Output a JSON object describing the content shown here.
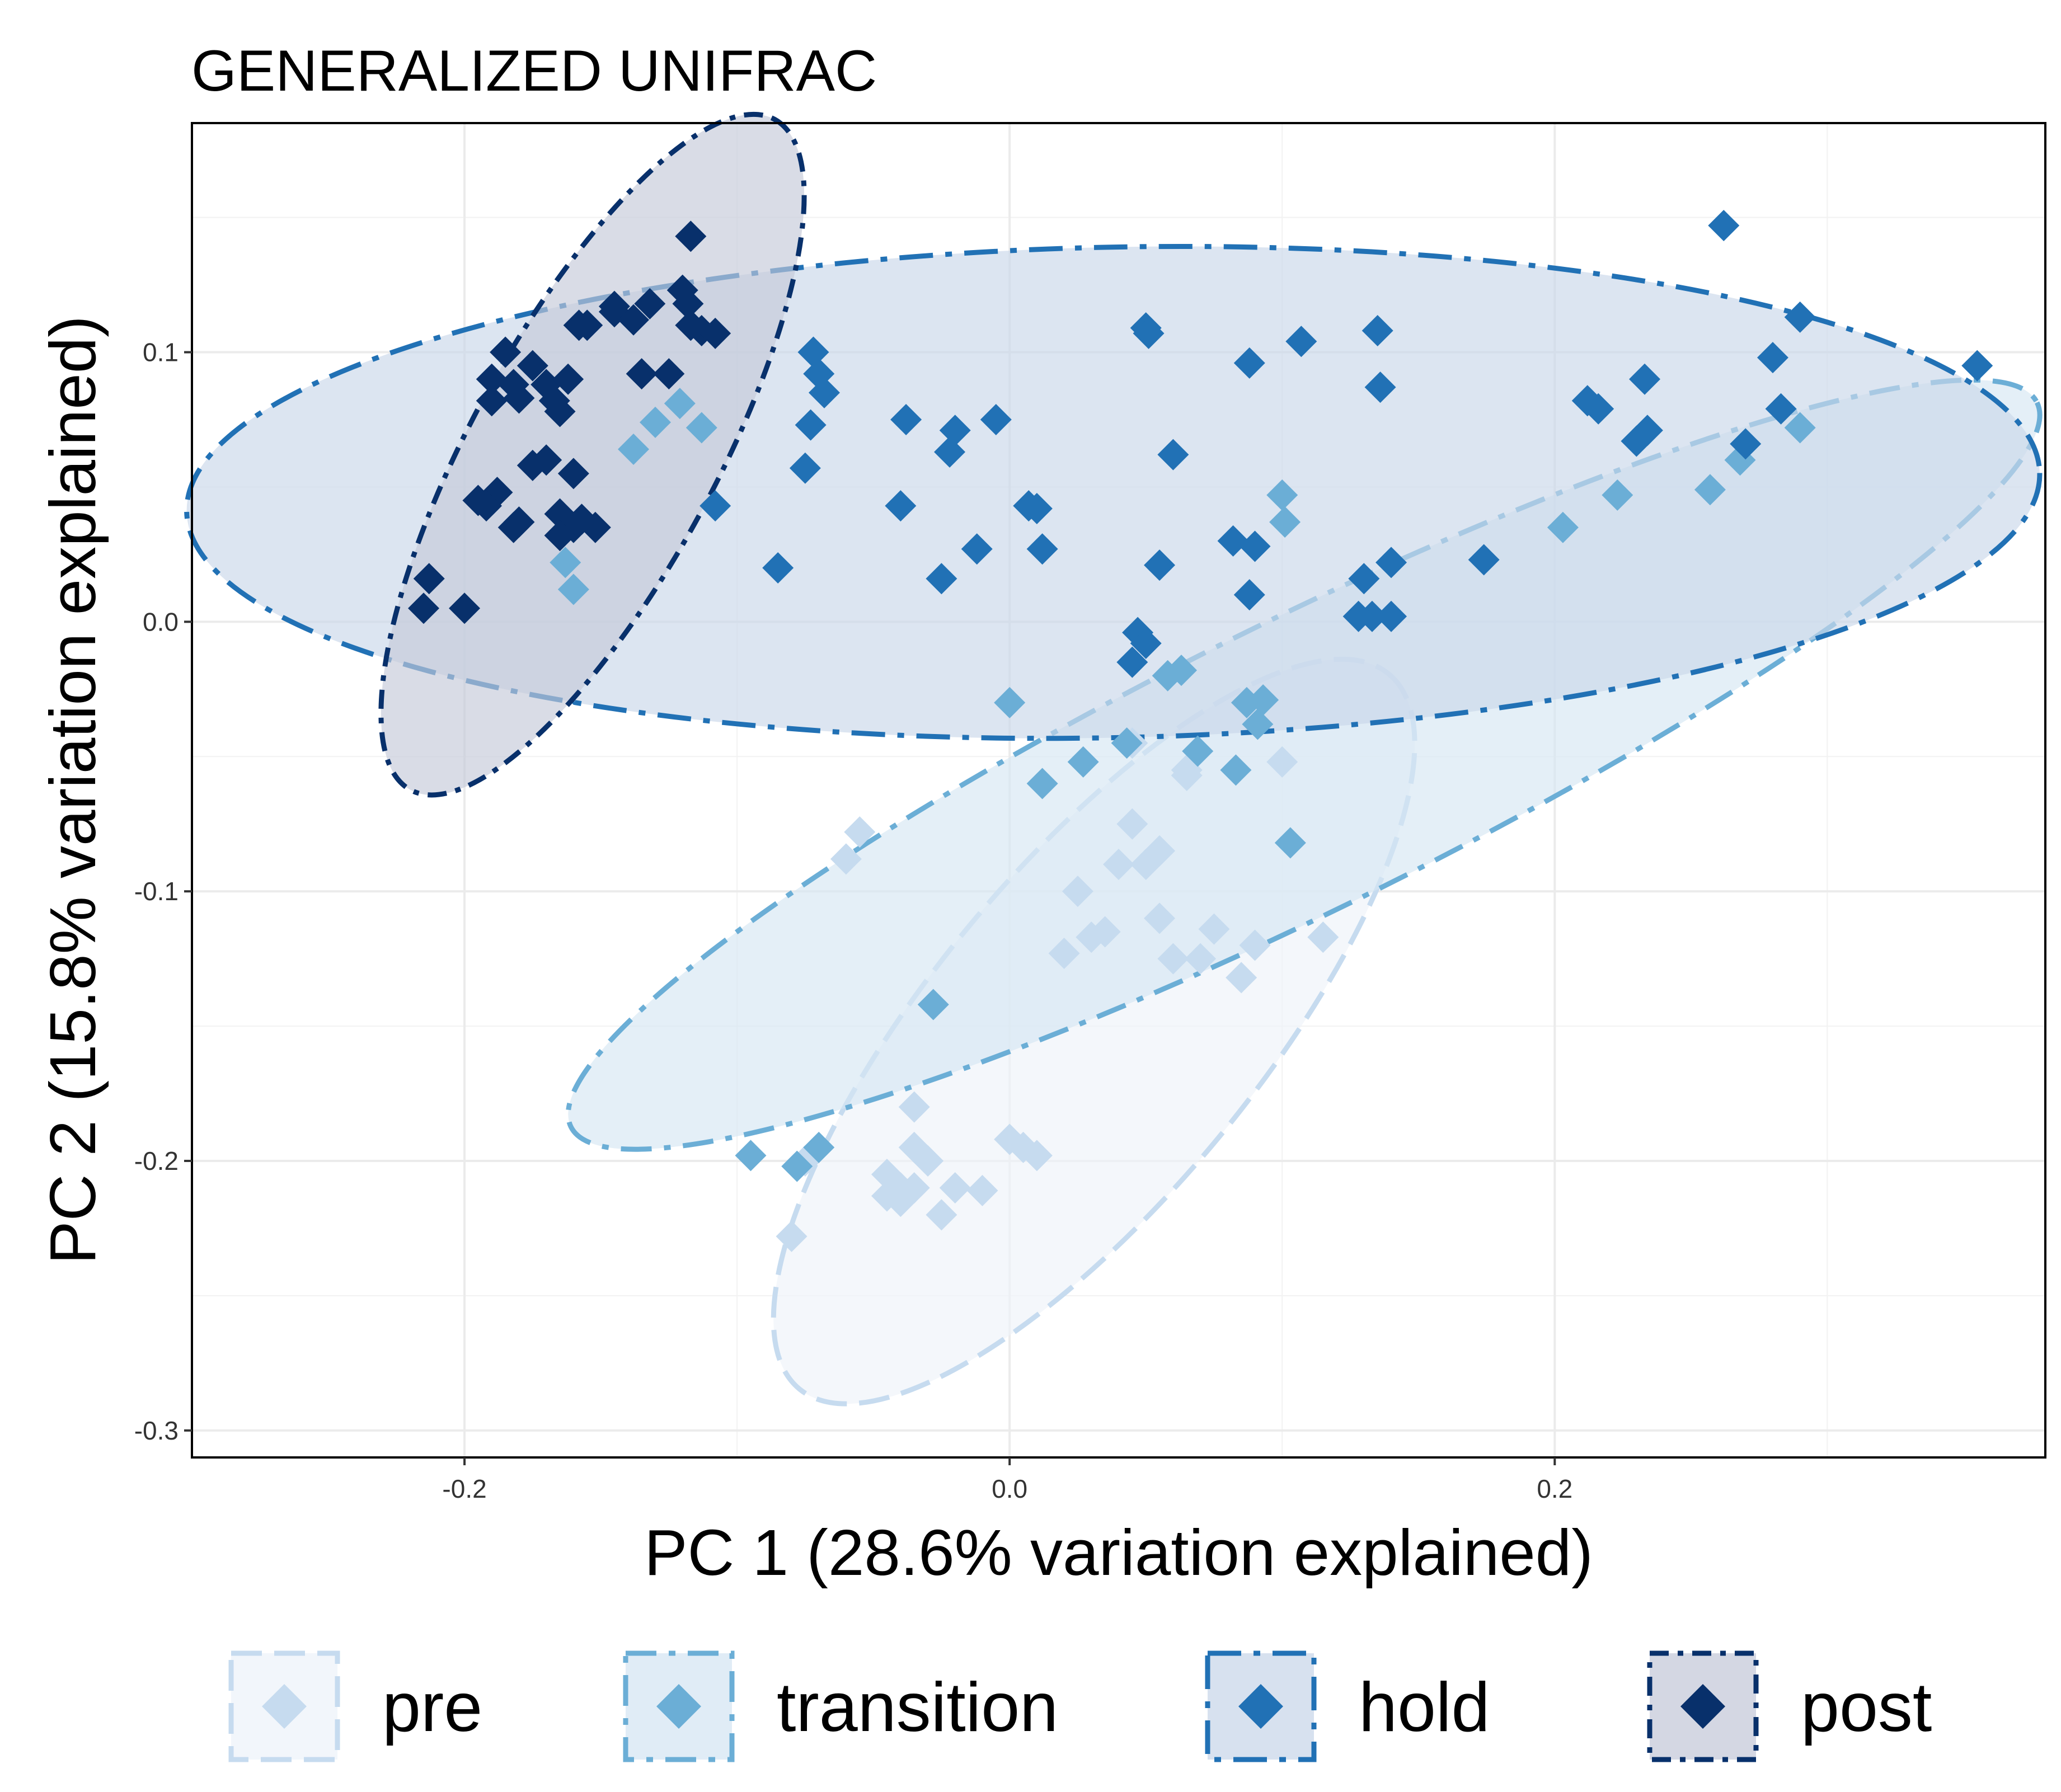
{
  "chart_data": {
    "type": "scatter",
    "title": "GENERALIZED UNIFRAC",
    "xlabel": "PC 1 (28.6% variation explained)",
    "ylabel": "PC 2 (15.8% variation explained)",
    "xlim": [
      -0.3,
      0.38
    ],
    "ylim": [
      -0.31,
      0.185
    ],
    "x_ticks": [
      -0.2,
      0.0,
      0.2
    ],
    "x_tick_labels": [
      "-0.2",
      "0.0",
      "0.2"
    ],
    "y_ticks": [
      -0.3,
      -0.2,
      -0.1,
      0.0,
      0.1
    ],
    "y_tick_labels": [
      "-0.3",
      "-0.2",
      "-0.1",
      "0.0",
      "0.1"
    ],
    "grid": true,
    "legend_position": "bottom",
    "series": [
      {
        "name": "pre",
        "color": "#c6dbef",
        "fill": "#eef3f9",
        "ellipse": {
          "cx": 0.031,
          "cy": -0.152,
          "rx": 0.17,
          "ry": 0.06,
          "angle": -50.5
        },
        "x": [
          -0.035,
          -0.03,
          -0.035,
          -0.04,
          -0.045,
          -0.04,
          -0.035,
          -0.03,
          -0.025,
          -0.045,
          -0.02,
          -0.01,
          -0.08,
          -0.075,
          0.0,
          0.01,
          0.005,
          0.02,
          0.025,
          0.03,
          0.035,
          0.04,
          0.045,
          0.05,
          0.055,
          0.06,
          0.065,
          0.07,
          0.075,
          0.085,
          0.09,
          0.045,
          0.055,
          0.065,
          0.115,
          0.1,
          -0.06,
          -0.055
        ],
        "y": [
          -0.18,
          -0.2,
          -0.21,
          -0.215,
          -0.205,
          -0.21,
          -0.195,
          -0.2,
          -0.22,
          -0.213,
          -0.21,
          -0.211,
          -0.228,
          -0.2,
          -0.192,
          -0.198,
          -0.195,
          -0.123,
          -0.1,
          -0.117,
          -0.115,
          -0.09,
          -0.075,
          -0.09,
          -0.11,
          -0.125,
          -0.057,
          -0.125,
          -0.114,
          -0.132,
          -0.12,
          -0.045,
          -0.085,
          -0.055,
          -0.117,
          -0.052,
          -0.088,
          -0.078
        ]
      },
      {
        "name": "transition",
        "color": "#6baed6",
        "fill": "#d6e6f3",
        "ellipse": {
          "cx": 0.108,
          "cy": -0.053,
          "rx": 0.3,
          "ry": 0.053,
          "angle": -26.3
        },
        "x": [
          -0.095,
          -0.078,
          -0.07,
          -0.028,
          0.0,
          0.012,
          0.027,
          0.043,
          0.058,
          0.063,
          0.069,
          0.083,
          0.087,
          0.091,
          0.093,
          0.103,
          0.101,
          0.1,
          0.203,
          0.223,
          0.257,
          0.268,
          0.29,
          -0.16,
          -0.163,
          -0.138,
          -0.13,
          -0.121,
          -0.113
        ],
        "y": [
          -0.198,
          -0.202,
          -0.195,
          -0.142,
          -0.03,
          -0.06,
          -0.052,
          -0.045,
          -0.02,
          -0.018,
          -0.048,
          -0.055,
          -0.03,
          -0.038,
          -0.029,
          -0.082,
          0.037,
          0.047,
          0.035,
          0.047,
          0.049,
          0.06,
          0.072,
          0.012,
          0.022,
          0.064,
          0.074,
          0.081,
          0.072
        ]
      },
      {
        "name": "hold",
        "color": "#2171b5",
        "fill": "#c9d7e9",
        "ellipse": {
          "cx": 0.038,
          "cy": 0.048,
          "rx": 0.34,
          "ry": 0.09,
          "angle": -1.2
        },
        "x": [
          -0.072,
          -0.07,
          -0.068,
          -0.073,
          -0.075,
          -0.108,
          -0.085,
          -0.04,
          -0.038,
          -0.025,
          -0.022,
          -0.02,
          -0.012,
          -0.005,
          0.007,
          0.01,
          0.012,
          0.05,
          0.051,
          0.088,
          0.107,
          0.135,
          0.136,
          0.06,
          0.055,
          0.047,
          0.045,
          0.05,
          0.082,
          0.088,
          0.09,
          0.13,
          0.133,
          0.14,
          0.14,
          0.128,
          0.174,
          0.212,
          0.216,
          0.233,
          0.23,
          0.234,
          0.262,
          0.27,
          0.28,
          0.29,
          0.283,
          0.355
        ],
        "y": [
          0.1,
          0.092,
          0.085,
          0.073,
          0.057,
          0.043,
          0.02,
          0.043,
          0.075,
          0.016,
          0.063,
          0.071,
          0.027,
          0.075,
          0.043,
          0.042,
          0.027,
          0.109,
          0.107,
          0.096,
          0.104,
          0.108,
          0.087,
          0.062,
          0.021,
          -0.004,
          -0.015,
          -0.008,
          0.03,
          0.01,
          0.028,
          0.016,
          0.002,
          0.022,
          0.002,
          0.002,
          0.023,
          0.082,
          0.079,
          0.09,
          0.067,
          0.071,
          0.147,
          0.066,
          0.098,
          0.113,
          0.079,
          0.095
        ]
      },
      {
        "name": "post",
        "color": "#08306b",
        "fill": "#c5cad9",
        "ellipse": {
          "cx": -0.153,
          "cy": 0.062,
          "rx": 0.14,
          "ry": 0.045,
          "angle": -61.5
        },
        "x": [
          -0.117,
          -0.12,
          -0.118,
          -0.113,
          -0.108,
          -0.132,
          -0.145,
          -0.158,
          -0.185,
          -0.19,
          -0.182,
          -0.18,
          -0.175,
          -0.17,
          -0.167,
          -0.165,
          -0.162,
          -0.155,
          -0.145,
          -0.138,
          -0.135,
          -0.165,
          -0.16,
          -0.188,
          -0.192,
          -0.18,
          -0.17,
          -0.165,
          -0.16,
          -0.152,
          -0.195,
          -0.19,
          -0.213,
          -0.215,
          -0.2,
          -0.182,
          -0.175,
          -0.157,
          -0.125,
          -0.117
        ],
        "y": [
          0.143,
          0.123,
          0.118,
          0.108,
          0.107,
          0.118,
          0.117,
          0.11,
          0.1,
          0.09,
          0.088,
          0.083,
          0.095,
          0.088,
          0.082,
          0.078,
          0.09,
          0.11,
          0.115,
          0.112,
          0.092,
          0.04,
          0.035,
          0.048,
          0.043,
          0.037,
          0.06,
          0.032,
          0.055,
          0.035,
          0.045,
          0.082,
          0.016,
          0.005,
          0.005,
          0.035,
          0.058,
          0.038,
          0.092,
          0.11
        ]
      }
    ]
  }
}
